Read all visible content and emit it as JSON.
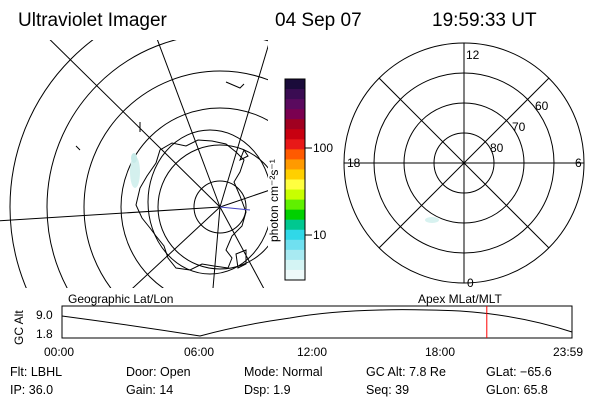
{
  "header": {
    "instrument": "Ultraviolet Imager",
    "date": "04 Sep 07",
    "time": "19:59:33 UT"
  },
  "colorbar": {
    "unit_label": "photon cm⁻²s⁻¹",
    "ticks": [
      "100",
      "10"
    ],
    "colors_top_to_bottom": [
      "#1a0b3a",
      "#3a0c52",
      "#5a0a5e",
      "#7a0050",
      "#a00020",
      "#c80010",
      "#e81818",
      "#ff5a00",
      "#ff9a00",
      "#ffd000",
      "#ffff40",
      "#c8ff00",
      "#60f000",
      "#00d000",
      "#00c890",
      "#30d8e8",
      "#70e0f0",
      "#a8eaf2",
      "#d4f4f4",
      "#eefafa"
    ]
  },
  "polar_plot": {
    "hour_labels": [
      "12",
      "18",
      "6",
      "0"
    ],
    "lat_labels": [
      "60",
      "70",
      "80"
    ]
  },
  "timeline": {
    "left_title": "Geographic Lat/Lon",
    "right_title": "Apex MLat/MLT",
    "y_axis_label": "GC Alt",
    "y_ticks": [
      "9.0",
      "1.8"
    ],
    "x_ticks": [
      "00:00",
      "06:00",
      "12:00",
      "18:00",
      "23:59"
    ],
    "current_time_fraction": 0.833,
    "marker_color": "#ff0000"
  },
  "status": {
    "flt": "Flt: LBHL",
    "ip": "IP: 36.0",
    "door": "Door: Open",
    "gain": "Gain: 14",
    "mode": "Mode: Normal",
    "dsp": "Dsp:     1.9",
    "gc_alt": "GC Alt: 7.8 Re",
    "seq": "Seq: 39",
    "glat": "GLat:  −65.6",
    "glon": "GLon:   65.8"
  }
}
